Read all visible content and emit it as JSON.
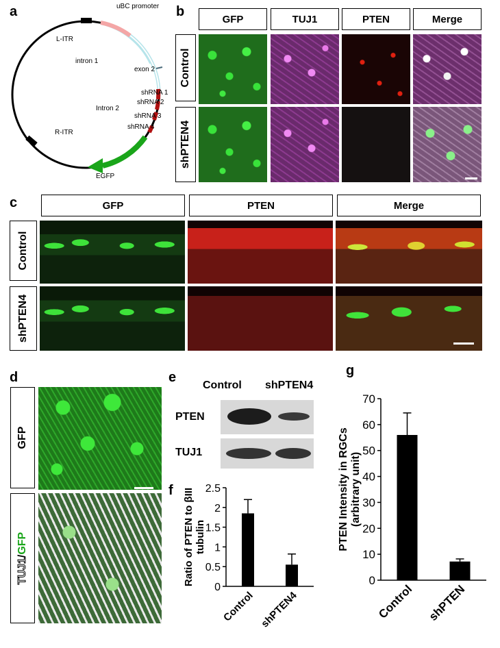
{
  "panel_letters": {
    "a": "a",
    "b": "b",
    "c": "c",
    "d": "d",
    "e": "e",
    "f": "f",
    "g": "g"
  },
  "plasmid": {
    "labels": {
      "uBC": "uBC promoter",
      "litr": "L-ITR",
      "intron1": "intron 1",
      "exon2": "exon 2",
      "intron2": "Intron 2",
      "sh1": "shRNA 1",
      "sh2": "shRNA 2",
      "sh3": "shRNA 3",
      "sh4": "shRNA 4",
      "ritr": "R-ITR",
      "egfp": "EGFP"
    },
    "colors": {
      "promoter": "#f4a6a6",
      "intron": "#b6e4ea",
      "egfp": "#1aa51a",
      "shrna": "#b01010",
      "itr": "#000000"
    }
  },
  "panel_b": {
    "columns": [
      "GFP",
      "TUJ1",
      "PTEN",
      "Merge"
    ],
    "rows": [
      "Control",
      "shPTEN4"
    ]
  },
  "panel_c": {
    "columns": [
      "GFP",
      "PTEN",
      "Merge"
    ],
    "rows": [
      "Control",
      "shPTEN4"
    ]
  },
  "panel_d": {
    "labels": {
      "gfp": "GFP",
      "tuj1": "TUJ1",
      "slash": "/",
      "gfp2": "GFP"
    }
  },
  "panel_e": {
    "lanes": [
      "Control",
      "shPTEN4"
    ],
    "rows": [
      "PTEN",
      "TUJ1"
    ]
  },
  "chart_data": [
    {
      "panel": "f",
      "type": "bar",
      "categories": [
        "Control",
        "shPTEN4"
      ],
      "values": [
        1.85,
        0.55
      ],
      "errors": [
        0.35,
        0.27
      ],
      "ylabel": "Ratio of PTEN to βIII tubulin",
      "ylim": [
        0,
        2.5
      ],
      "yticks": [
        "0",
        "0.5",
        "1",
        "1.5",
        "2",
        "2.5"
      ],
      "tick_values": [
        0,
        0.5,
        1,
        1.5,
        2,
        2.5
      ],
      "bar_color": "#000000"
    },
    {
      "panel": "g",
      "type": "bar",
      "categories": [
        "Control",
        "shPTEN"
      ],
      "values": [
        56,
        7.2
      ],
      "errors": [
        8.5,
        1.0
      ],
      "ylabel": "PTEN Intensity in RGCs (arbitrary unit)",
      "ylim": [
        0,
        70
      ],
      "yticks": [
        "0",
        "10",
        "20",
        "30",
        "40",
        "50",
        "60",
        "70"
      ],
      "tick_values": [
        0,
        10,
        20,
        30,
        40,
        50,
        60,
        70
      ],
      "bar_color": "#000000"
    }
  ]
}
